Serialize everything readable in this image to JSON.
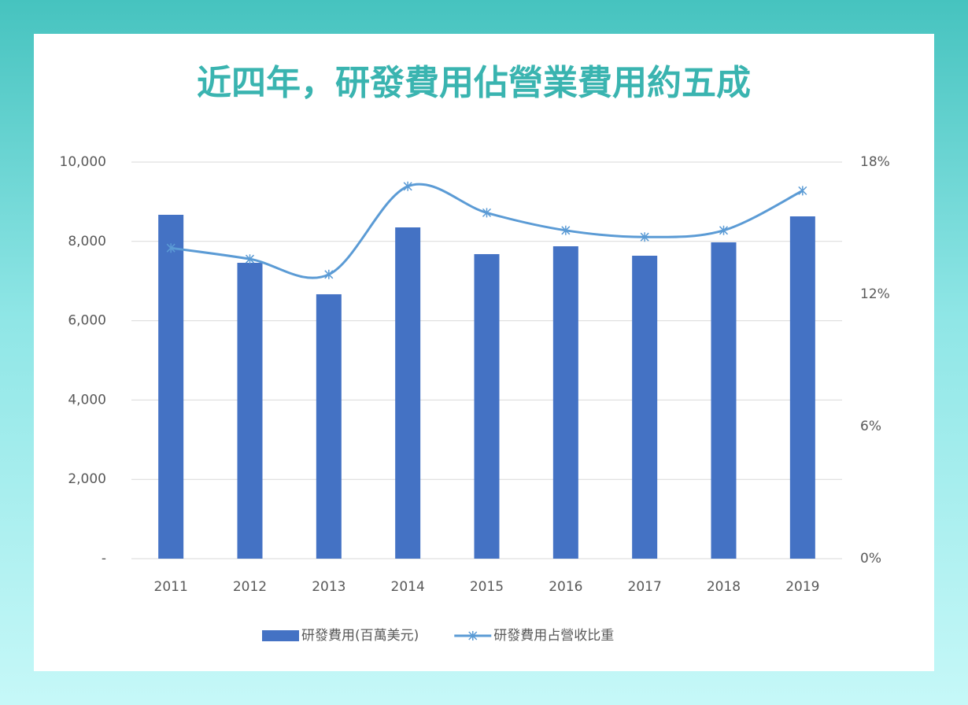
{
  "chart_data": {
    "type": "bar-line",
    "title": "近四年，研發費用佔營業費用約五成",
    "categories": [
      "2011",
      "2012",
      "2013",
      "2014",
      "2015",
      "2016",
      "2017",
      "2018",
      "2019"
    ],
    "series": [
      {
        "name": "研發費用(百萬美元)",
        "type": "bar",
        "color": "#4472c4",
        "values": [
          8671,
          7460,
          6667,
          8353,
          7679,
          7877,
          7639,
          7976,
          8631
        ]
      },
      {
        "name": "研發費用占營收比重",
        "type": "line",
        "axis": "y2",
        "color": "#5b9bd5",
        "values": [
          14.1,
          13.6,
          12.9,
          16.9,
          15.7,
          14.9,
          14.6,
          14.9,
          16.7
        ]
      }
    ],
    "ylim": [
      0,
      10000
    ],
    "yticks": [
      {
        "value": 0,
        "label": "-"
      },
      {
        "value": 2000,
        "label": "2,000"
      },
      {
        "value": 4000,
        "label": "4,000"
      },
      {
        "value": 6000,
        "label": "6,000"
      },
      {
        "value": 8000,
        "label": "8,000"
      },
      {
        "value": 10000,
        "label": "10,000"
      }
    ],
    "y2lim": [
      0,
      18
    ],
    "y2ticks": [
      {
        "value": 0,
        "label": "0%"
      },
      {
        "value": 6,
        "label": "6%"
      },
      {
        "value": 12,
        "label": "12%"
      },
      {
        "value": 18,
        "label": "18%"
      }
    ],
    "grid": true,
    "legend": "bottom"
  }
}
